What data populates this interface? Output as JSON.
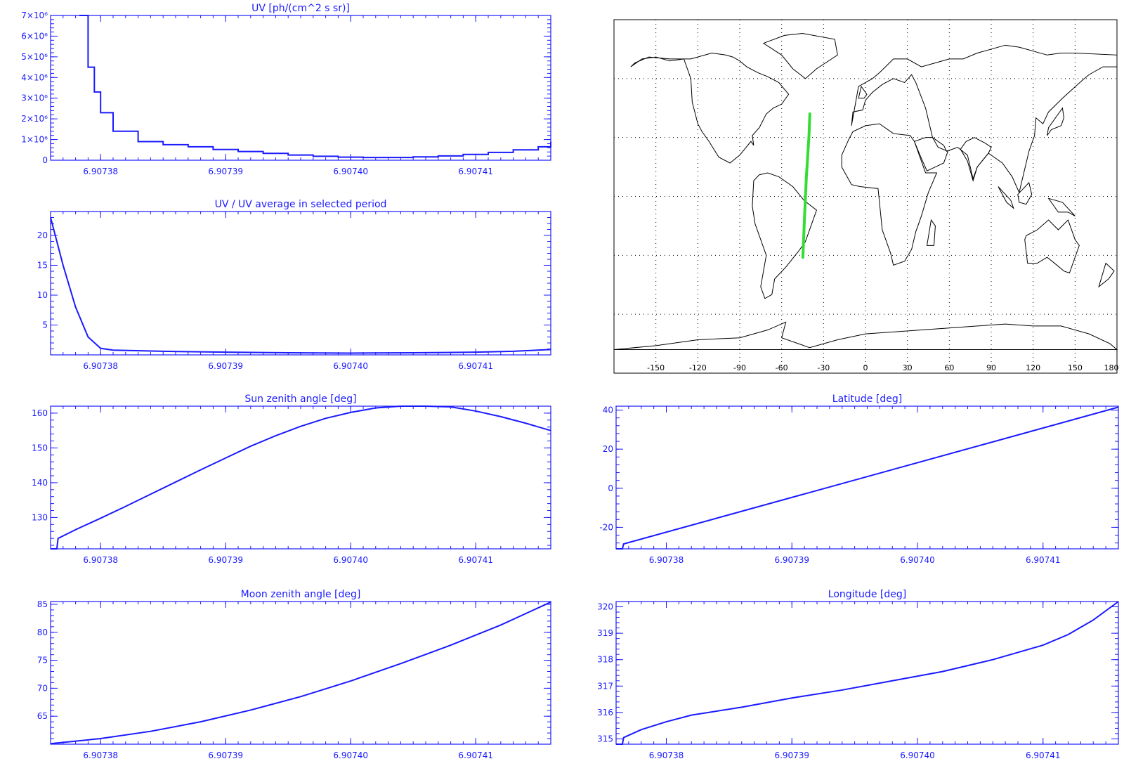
{
  "colors": {
    "axis": "#1a1aff",
    "line": "#1a1aff",
    "track": "#33dd33",
    "coast": "#000000",
    "grid": "#000000",
    "background": "#ffffff"
  },
  "chart_data": [
    {
      "id": "uv",
      "type": "line",
      "title": "UV [ph/(cm^2 s sr)]",
      "xlabel": "",
      "ylabel": "",
      "xlim": [
        6.907376,
        6.907416
      ],
      "ylim": [
        0,
        7000000
      ],
      "xticks": [
        6.90738,
        6.90739,
        6.9074,
        6.90741
      ],
      "xtick_labels": [
        "6.90738",
        "6.90739",
        "6.90740",
        "6.90741"
      ],
      "yticks": [
        0,
        1000000,
        2000000,
        3000000,
        4000000,
        5000000,
        6000000,
        7000000
      ],
      "ytick_labels": [
        "0",
        "1×10⁶",
        "2×10⁶",
        "3×10⁶",
        "4×10⁶",
        "5×10⁶",
        "6×10⁶",
        "7×10⁶"
      ],
      "step": true,
      "series": [
        {
          "x": [
            6.9073783,
            6.907379,
            6.9073795,
            6.90738,
            6.907381,
            6.907383,
            6.907385,
            6.907387,
            6.907389,
            6.907391,
            6.907393,
            6.907395,
            6.907397,
            6.907399,
            6.907401,
            6.907403,
            6.907405,
            6.907407,
            6.907409,
            6.907411,
            6.907413,
            6.907415,
            6.907416
          ],
          "y": [
            7000000,
            4500000,
            3300000,
            2300000,
            1400000,
            900000,
            750000,
            650000,
            520000,
            420000,
            330000,
            250000,
            190000,
            150000,
            130000,
            130000,
            160000,
            210000,
            280000,
            380000,
            500000,
            650000,
            900000
          ]
        }
      ]
    },
    {
      "id": "uv-ratio",
      "type": "line",
      "title": "UV / UV average in selected period",
      "xlabel": "",
      "ylabel": "",
      "xlim": [
        6.907376,
        6.907416
      ],
      "ylim": [
        0,
        24
      ],
      "xticks": [
        6.90738,
        6.90739,
        6.9074,
        6.90741
      ],
      "xtick_labels": [
        "6.90738",
        "6.90739",
        "6.90740",
        "6.90741"
      ],
      "yticks": [
        5,
        10,
        15,
        20
      ],
      "ytick_labels": [
        "5",
        "10",
        "15",
        "20"
      ],
      "series": [
        {
          "x": [
            6.907376,
            6.907377,
            6.907378,
            6.907379,
            6.90738,
            6.907381,
            6.907385,
            6.90739,
            6.907395,
            6.9074,
            6.907405,
            6.90741,
            6.907413,
            6.907416
          ],
          "y": [
            23,
            15,
            8,
            3,
            1.1,
            0.8,
            0.6,
            0.45,
            0.35,
            0.3,
            0.35,
            0.45,
            0.6,
            0.9
          ]
        }
      ]
    },
    {
      "id": "sun-zenith",
      "type": "line",
      "title": "Sun zenith angle [deg]",
      "xlabel": "",
      "ylabel": "",
      "xlim": [
        6.907376,
        6.907416
      ],
      "ylim": [
        121,
        162
      ],
      "xticks": [
        6.90738,
        6.90739,
        6.9074,
        6.90741
      ],
      "xtick_labels": [
        "6.90738",
        "6.90739",
        "6.90740",
        "6.90741"
      ],
      "yticks": [
        130,
        140,
        150,
        160
      ],
      "ytick_labels": [
        "130",
        "140",
        "150",
        "160"
      ],
      "series": [
        {
          "x": [
            6.907376,
            6.9073765,
            6.9073766,
            6.907378,
            6.90738,
            6.907382,
            6.907384,
            6.907386,
            6.907388,
            6.90739,
            6.907392,
            6.907394,
            6.907396,
            6.907398,
            6.9074,
            6.907402,
            6.907404,
            6.907406,
            6.907408,
            6.90741,
            6.907412,
            6.907414,
            6.907416
          ],
          "y": [
            121,
            121,
            124,
            126.5,
            129.8,
            133.2,
            136.7,
            140.2,
            143.7,
            147.1,
            150.5,
            153.5,
            156.2,
            158.5,
            160.2,
            161.5,
            162.2,
            162.3,
            161.8,
            160.6,
            159,
            157.1,
            155
          ]
        }
      ]
    },
    {
      "id": "moon-zenith",
      "type": "line",
      "title": "Moon zenith angle [deg]",
      "xlabel": "",
      "ylabel": "",
      "xlim": [
        6.907376,
        6.907416
      ],
      "ylim": [
        60,
        85.5
      ],
      "xticks": [
        6.90738,
        6.90739,
        6.9074,
        6.90741
      ],
      "xtick_labels": [
        "6.90738",
        "6.90739",
        "6.90740",
        "6.90741"
      ],
      "yticks": [
        65,
        70,
        75,
        80,
        85
      ],
      "ytick_labels": [
        "65",
        "70",
        "75",
        "80",
        "85"
      ],
      "series": [
        {
          "x": [
            6.907376,
            6.90738,
            6.907384,
            6.907388,
            6.907392,
            6.907396,
            6.9074,
            6.907404,
            6.907408,
            6.907412,
            6.907416
          ],
          "y": [
            60.1,
            61,
            62.3,
            64,
            66.1,
            68.5,
            71.3,
            74.4,
            77.7,
            81.3,
            85.4
          ]
        }
      ]
    },
    {
      "id": "latitude",
      "type": "line",
      "title": "Latitude [deg]",
      "xlabel": "",
      "ylabel": "",
      "xlim": [
        6.907376,
        6.907416
      ],
      "ylim": [
        -31,
        42
      ],
      "xticks": [
        6.90738,
        6.90739,
        6.9074,
        6.90741
      ],
      "xtick_labels": [
        "6.90738",
        "6.90739",
        "6.90740",
        "6.90741"
      ],
      "yticks": [
        -20,
        0,
        20,
        40
      ],
      "ytick_labels": [
        "-20",
        "0",
        "20",
        "40"
      ],
      "series": [
        {
          "x": [
            6.907376,
            6.9073765,
            6.9073766,
            6.907416
          ],
          "y": [
            -31,
            -31,
            -28.5,
            41.5
          ]
        }
      ]
    },
    {
      "id": "longitude",
      "type": "line",
      "title": "Longitude [deg]",
      "xlabel": "",
      "ylabel": "",
      "xlim": [
        6.907376,
        6.907416
      ],
      "ylim": [
        314.8,
        320.2
      ],
      "xticks": [
        6.90738,
        6.90739,
        6.9074,
        6.90741
      ],
      "xtick_labels": [
        "6.90738",
        "6.90739",
        "6.90740",
        "6.90741"
      ],
      "yticks": [
        315,
        316,
        317,
        318,
        319,
        320
      ],
      "ytick_labels": [
        "315",
        "316",
        "317",
        "318",
        "319",
        "320"
      ],
      "series": [
        {
          "x": [
            6.907376,
            6.9073765,
            6.9073766,
            6.907378,
            6.90738,
            6.907382,
            6.907386,
            6.90739,
            6.907394,
            6.907398,
            6.907402,
            6.907406,
            6.90741,
            6.907412,
            6.907414,
            6.907416
          ],
          "y": [
            314.8,
            314.8,
            315.05,
            315.35,
            315.65,
            315.9,
            316.2,
            316.55,
            316.85,
            317.2,
            317.55,
            318,
            318.55,
            318.95,
            319.5,
            320.2
          ]
        }
      ]
    },
    {
      "id": "map",
      "type": "map",
      "title": "",
      "grid": true,
      "xlim": [
        -180,
        180
      ],
      "ylim": [
        -90,
        90
      ],
      "xticks": [
        -150,
        -120,
        -90,
        -60,
        -30,
        0,
        30,
        60,
        90,
        120,
        150,
        180
      ],
      "xtick_labels": [
        "-150",
        "-120",
        "-90",
        "-60",
        "-30",
        "0",
        "30",
        "60",
        "90",
        "120",
        "150",
        "180"
      ],
      "yticks": [
        -60,
        -30,
        0,
        30,
        60
      ],
      "track": {
        "lon": [
          -44.8,
          -43.6,
          -42.3,
          -40.5,
          -39.8
        ],
        "lat": [
          -31,
          -10,
          10,
          30,
          42
        ]
      },
      "continents": [
        {
          "name": "North America",
          "lon": [
            -168,
            -160,
            -150,
            -140,
            -130,
            -125,
            -124,
            -120,
            -117,
            -112,
            -105,
            -97,
            -90,
            -82,
            -80,
            -81,
            -76,
            -71,
            -66,
            -60,
            -55,
            -62,
            -70,
            -77,
            -85,
            -90,
            -95,
            -100,
            -110,
            -125,
            -140,
            -155,
            -165,
            -168
          ],
          "lat": [
            66,
            70,
            71,
            69,
            70,
            60,
            48,
            37,
            33,
            28,
            20,
            17,
            21,
            28,
            26,
            31,
            35,
            42,
            45,
            47,
            52,
            58,
            61,
            63,
            66,
            69,
            71,
            72,
            73,
            70,
            70,
            71,
            68,
            66
          ]
        },
        {
          "name": "South America",
          "lon": [
            -80,
            -76,
            -70,
            -62,
            -52,
            -44,
            -35,
            -39,
            -43,
            -48,
            -57,
            -65,
            -67,
            -72,
            -75,
            -73,
            -71,
            -79,
            -81,
            -80
          ],
          "lat": [
            8,
            11,
            12,
            10,
            5,
            -2,
            -7,
            -15,
            -23,
            -28,
            -36,
            -42,
            -50,
            -52,
            -46,
            -38,
            -30,
            -14,
            -5,
            8
          ]
        },
        {
          "name": "Greenland",
          "lon": [
            -73,
            -58,
            -45,
            -22,
            -20,
            -35,
            -43,
            -52,
            -60,
            -73
          ],
          "lat": [
            78,
            82,
            83,
            80,
            72,
            65,
            60,
            65,
            72,
            78
          ]
        },
        {
          "name": "Eurasia",
          "lon": [
            -10,
            -9,
            -2,
            0,
            5,
            12,
            20,
            28,
            33,
            36,
            43,
            48,
            56,
            58,
            66,
            73,
            77,
            80,
            88,
            98,
            105,
            110,
            117,
            121,
            122,
            127,
            131,
            141,
            155,
            160,
            170,
            180,
            180,
            150,
            140,
            130,
            110,
            100,
            80,
            70,
            60,
            50,
            40,
            30,
            20,
            10,
            5,
            -5,
            -10
          ],
          "lat": [
            36,
            43,
            44,
            49,
            53,
            57,
            60,
            58,
            62,
            58,
            45,
            30,
            26,
            23,
            25,
            21,
            9,
            15,
            22,
            17,
            10,
            2,
            23,
            31,
            40,
            37,
            43,
            50,
            59,
            62,
            66,
            66,
            72,
            73,
            73,
            72,
            76,
            77,
            73,
            70,
            70,
            68,
            66,
            70,
            70,
            63,
            60,
            56,
            36
          ]
        },
        {
          "name": "Africa",
          "lon": [
            -17,
            -17,
            -12,
            -9,
            0,
            10,
            20,
            32,
            35,
            43,
            51,
            45,
            40,
            36,
            33,
            28,
            20,
            18,
            12,
            10,
            9,
            -4,
            -10,
            -17
          ],
          "lat": [
            15,
            21,
            29,
            33,
            36,
            37,
            32,
            31,
            28,
            12,
            12,
            2,
            -10,
            -18,
            -27,
            -33,
            -35,
            -29,
            -17,
            -3,
            4,
            5,
            6,
            15
          ]
        },
        {
          "name": "Arabia",
          "lon": [
            35,
            39,
            44,
            50,
            56,
            59,
            52,
            48,
            43,
            35
          ],
          "lat": [
            28,
            21,
            13,
            15,
            17,
            23,
            25,
            30,
            30,
            28
          ]
        },
        {
          "name": "India",
          "lon": [
            68,
            73,
            77,
            80,
            88,
            90,
            86,
            78,
            72,
            68
          ],
          "lat": [
            24,
            18,
            8,
            15,
            22,
            25,
            27,
            30,
            28,
            24
          ]
        },
        {
          "name": "Australia",
          "lon": [
            114,
            116,
            123,
            130,
            137,
            142,
            146,
            153,
            150,
            145,
            138,
            131,
            123,
            115,
            114
          ],
          "lat": [
            -22,
            -34,
            -34,
            -31,
            -35,
            -38,
            -39,
            -25,
            -22,
            -12,
            -17,
            -12,
            -17,
            -20,
            -22
          ]
        },
        {
          "name": "Antarctica",
          "lon": [
            -180,
            -150,
            -120,
            -90,
            -70,
            -57,
            -60,
            -40,
            -20,
            0,
            20,
            40,
            60,
            80,
            100,
            120,
            140,
            160,
            175,
            180
          ],
          "lat": [
            -78,
            -76,
            -73,
            -72,
            -68,
            -64,
            -72,
            -77,
            -73,
            -70,
            -69,
            -68,
            -67,
            -66,
            -65,
            -66,
            -66,
            -70,
            -75,
            -78
          ]
        },
        {
          "name": "Great Britain",
          "lon": [
            -5,
            -3,
            1,
            -1,
            -5
          ],
          "lat": [
            50,
            56,
            52,
            50,
            50
          ]
        },
        {
          "name": "Japan",
          "lon": [
            130,
            133,
            140,
            142,
            141,
            131,
            130
          ],
          "lat": [
            31,
            34,
            36,
            40,
            45,
            35,
            31
          ]
        },
        {
          "name": "Madagascar",
          "lon": [
            44,
            49,
            50,
            47,
            44
          ],
          "lat": [
            -25,
            -25,
            -15,
            -12,
            -25
          ]
        },
        {
          "name": "New Zealand",
          "lon": [
            172,
            178,
            174,
            167,
            172
          ],
          "lat": [
            -34,
            -38,
            -42,
            -46,
            -34
          ]
        },
        {
          "name": "Borneo",
          "lon": [
            109,
            117,
            119,
            115,
            110,
            109
          ],
          "lat": [
            1,
            7,
            1,
            -4,
            -3,
            1
          ]
        },
        {
          "name": "Sumatra",
          "lon": [
            95,
            104,
            106,
            101,
            95
          ],
          "lat": [
            5,
            -2,
            -6,
            -3,
            5
          ]
        },
        {
          "name": "New Guinea",
          "lon": [
            131,
            141,
            150,
            145,
            138,
            131
          ],
          "lat": [
            -1,
            -3,
            -10,
            -8,
            -8,
            -1
          ]
        }
      ]
    }
  ]
}
